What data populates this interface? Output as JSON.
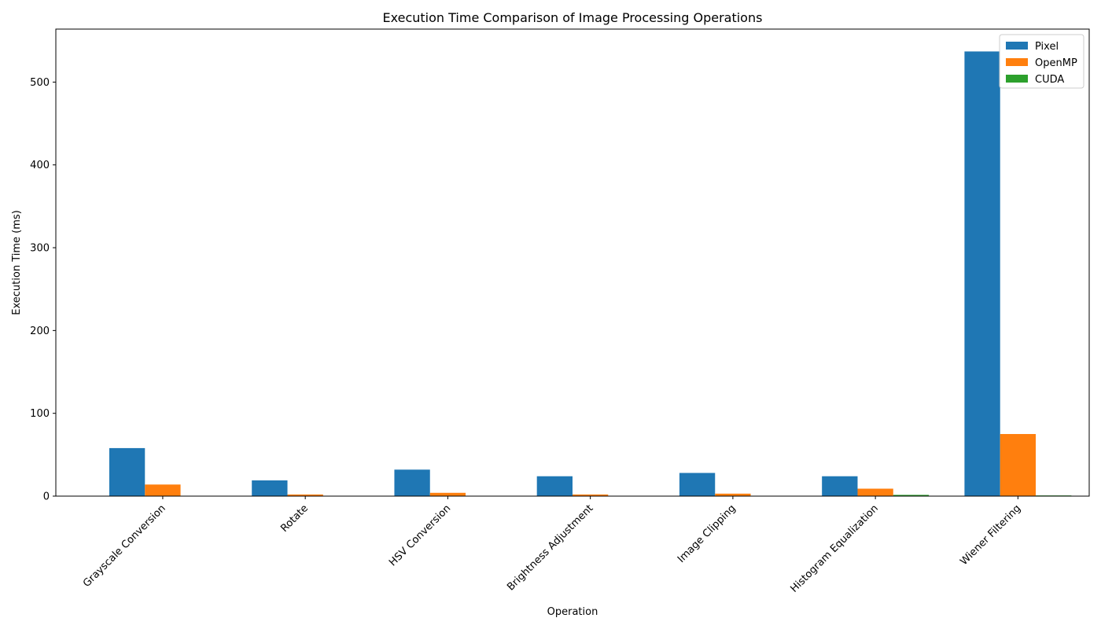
{
  "chart_data": {
    "type": "bar",
    "title": "Execution Time Comparison of Image Processing Operations",
    "xlabel": "Operation",
    "ylabel": "Execution Time (ms)",
    "categories": [
      "Grayscale Conversion",
      "Rotate",
      "HSV Conversion",
      "Brightness Adjustment",
      "Image Clipping",
      "Histogram Equalization",
      "Wiener Filtering"
    ],
    "series": [
      {
        "name": "Pixel",
        "color": "#1f77b4",
        "values": [
          58,
          19,
          32,
          24,
          28,
          24,
          537
        ]
      },
      {
        "name": "OpenMP",
        "color": "#ff7f0e",
        "values": [
          14,
          2,
          4,
          2,
          3,
          9,
          75
        ]
      },
      {
        "name": "CUDA",
        "color": "#2ca02c",
        "values": [
          0.3,
          0.2,
          0.3,
          0.2,
          0.3,
          1.5,
          0.8
        ]
      }
    ],
    "ylim": [
      0,
      564
    ],
    "yticks": [
      0,
      100,
      200,
      300,
      400,
      500
    ],
    "legend_position": "top-right",
    "grid": false
  }
}
